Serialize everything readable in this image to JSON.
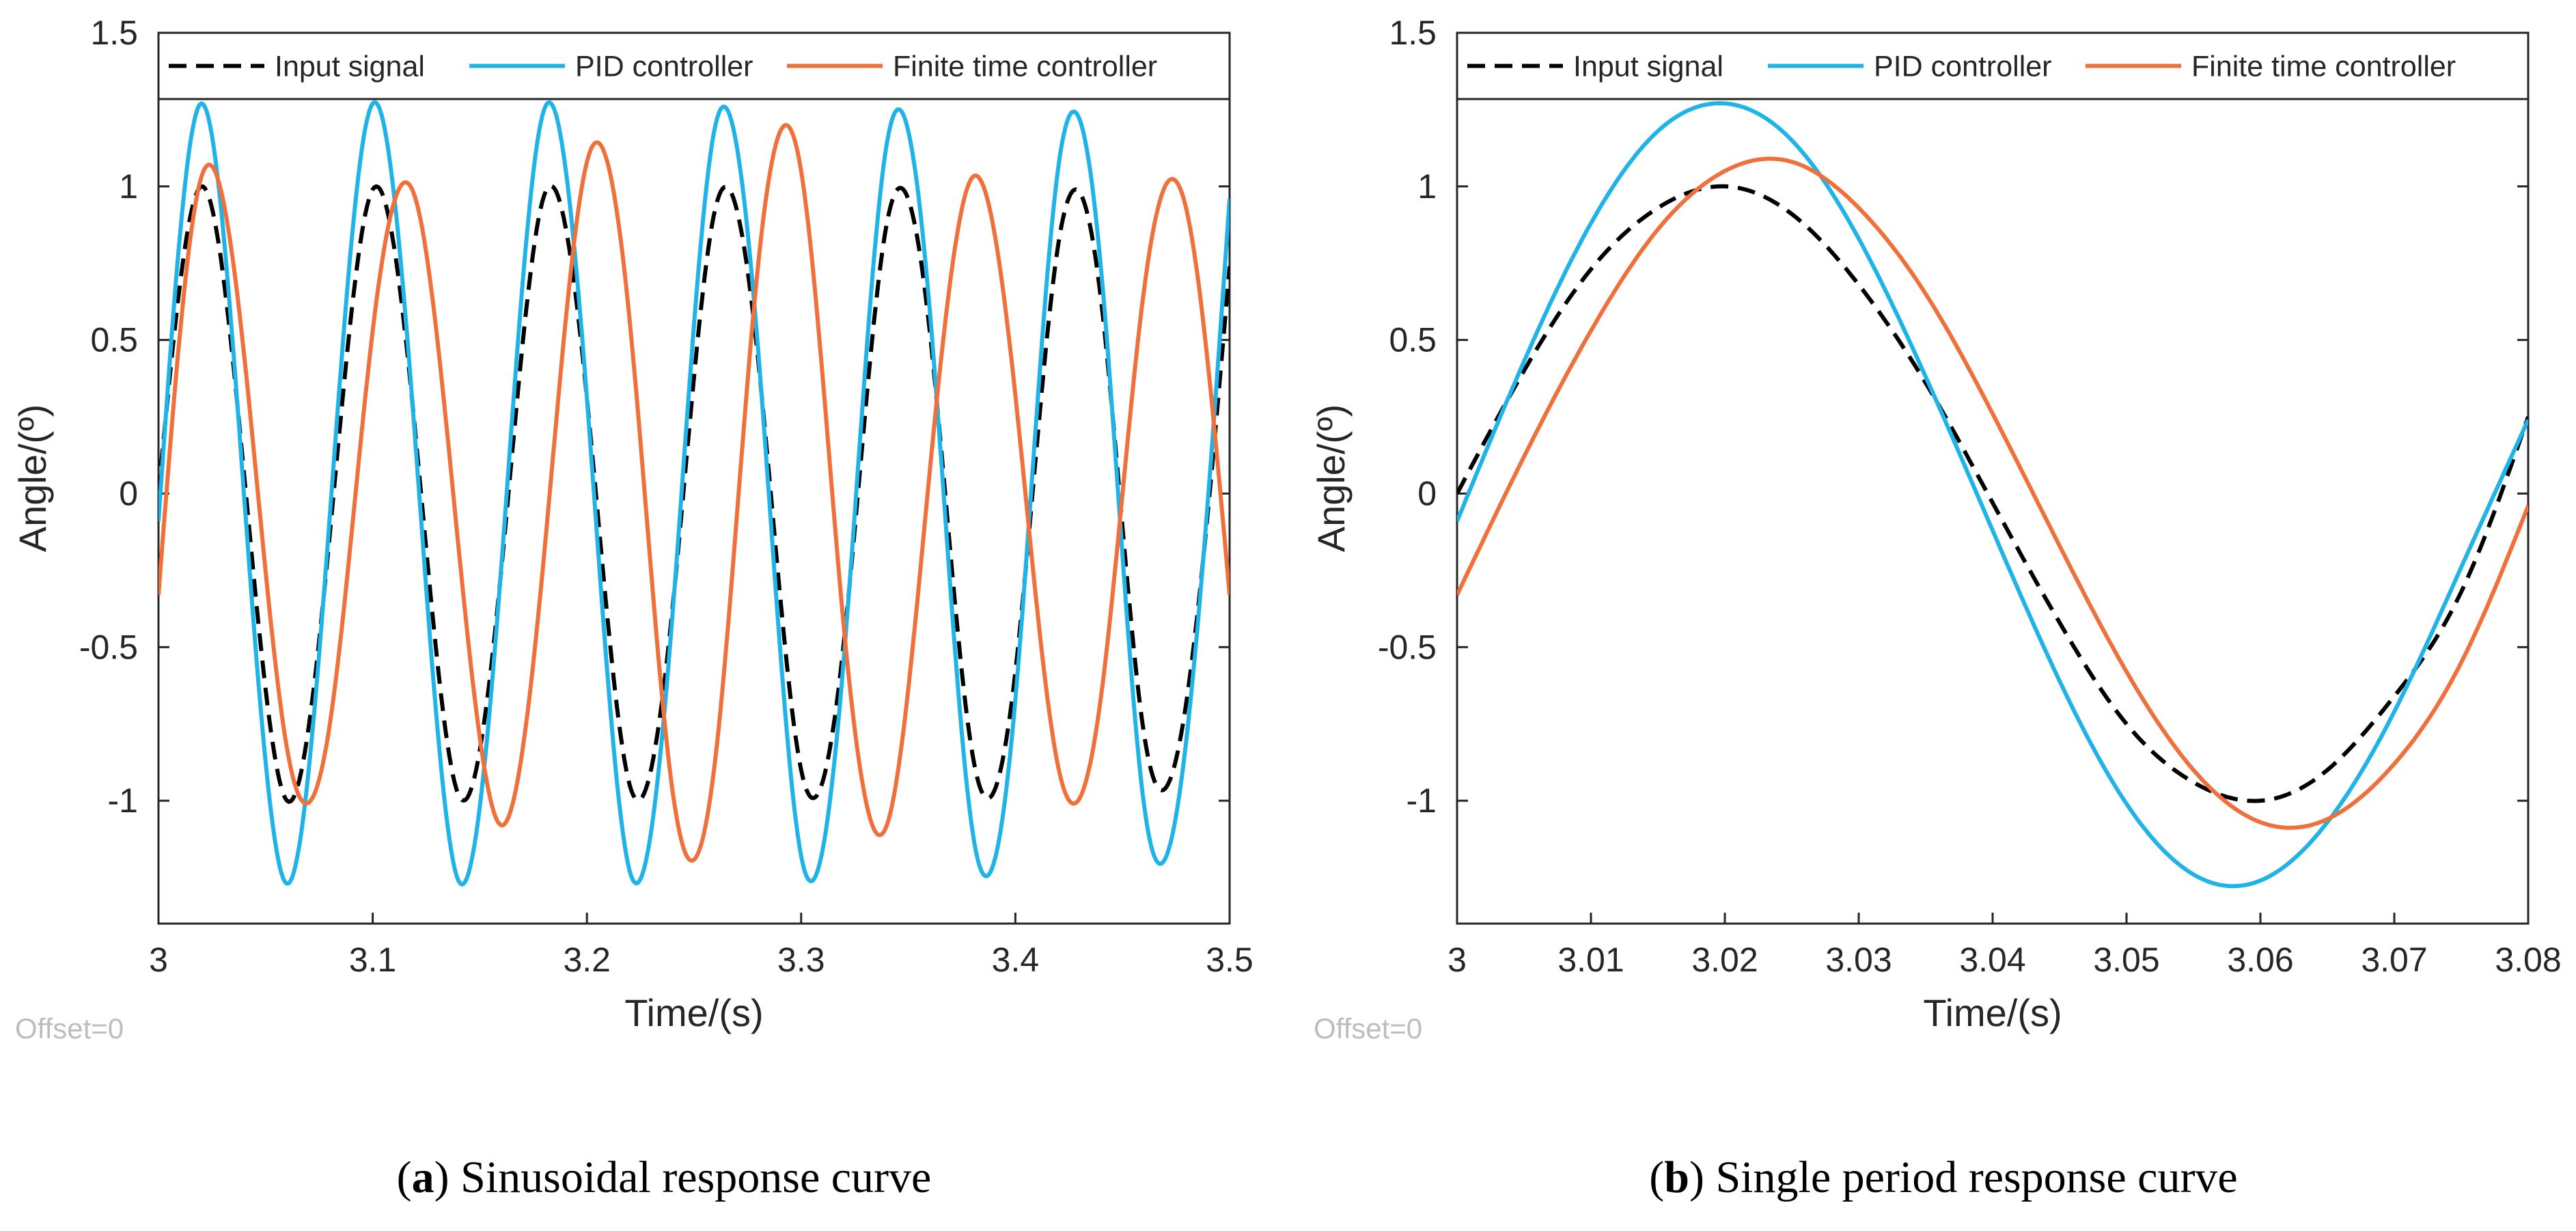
{
  "colors": {
    "input": "#000000",
    "pid": "#1fb3e8",
    "finite": "#f0703c"
  },
  "chart_data": [
    {
      "type": "line",
      "xlabel": "Time/(s)",
      "ylabel": "Angle/(º)",
      "offset_label": "Offset=0",
      "caption_letter": "a",
      "caption_open": "(",
      "caption_close": ")",
      "caption_text": " Sinusoidal response curve",
      "xlim": [
        3,
        3.5
      ],
      "ylim": [
        -1.4,
        1.5
      ],
      "xticks": [
        3,
        3.1,
        3.2,
        3.3,
        3.4,
        3.5
      ],
      "xtick_labels": [
        "3",
        "3.1",
        "3.2",
        "3.3",
        "3.4",
        "3.5"
      ],
      "yticks": [
        -1,
        -0.5,
        0,
        0.5,
        1,
        1.5
      ],
      "ytick_labels": [
        "-1",
        "-0.5",
        "0",
        "0.5",
        "1",
        "1.5"
      ],
      "legend_position": "top",
      "series": [
        {
          "name": "Input signal",
          "style": "dashed",
          "x": [
            3,
            3.02,
            3.04,
            3.06,
            3.08,
            3.1,
            3.12,
            3.14,
            3.16,
            3.18,
            3.2,
            3.22,
            3.24,
            3.26,
            3.28,
            3.3,
            3.32,
            3.34,
            3.36,
            3.38,
            3.4,
            3.42,
            3.44,
            3.46,
            3.48,
            3.5
          ],
          "y": [
            0,
            1,
            0.06,
            -1,
            -0.13,
            0.99,
            0.19,
            -0.98,
            -0.25,
            0.97,
            0.31,
            -0.95,
            -0.37,
            0.93,
            0.43,
            -0.9,
            -0.48,
            0.88,
            0.53,
            -0.85,
            -0.58,
            0.81,
            0.63,
            -0.78,
            -0.67,
            0.74
          ]
        },
        {
          "name": "PID controller",
          "style": "solid",
          "x": [
            3,
            3.02,
            3.04,
            3.06,
            3.08,
            3.1,
            3.12,
            3.14,
            3.16,
            3.18,
            3.2,
            3.22,
            3.24,
            3.26,
            3.28,
            3.3,
            3.32,
            3.34,
            3.36,
            3.38,
            3.4,
            3.42,
            3.44,
            3.46,
            3.48,
            3.5
          ],
          "y": [
            -0.09,
            1.27,
            -0.01,
            -1.27,
            -0.07,
            1.27,
            0.16,
            -1.26,
            -0.24,
            1.25,
            0.31,
            -1.23,
            -0.39,
            1.2,
            0.46,
            -1.18,
            -0.53,
            1.14,
            0.6,
            -1.1,
            -0.67,
            1.06,
            0.73,
            -1.01,
            -0.79,
            0.96
          ]
        },
        {
          "name": "Finite time controller",
          "style": "solid",
          "x": [
            3,
            3.02,
            3.04,
            3.06,
            3.08,
            3.1,
            3.12,
            3.14,
            3.16,
            3.18,
            3.2,
            3.22,
            3.24,
            3.26,
            3.28,
            3.3,
            3.32,
            3.34,
            3.36,
            3.38,
            3.4,
            3.42,
            3.44,
            3.46,
            3.48,
            3.5
          ],
          "y": [
            -0.33,
            1.03,
            0.45,
            -0.83,
            -0.75,
            0.53,
            0.96,
            -0.17,
            -1.08,
            -0.2,
            1.08,
            0.56,
            -0.97,
            -0.86,
            0.75,
            1.05,
            -0.44,
            -1.08,
            0.07,
            1.03,
            0.32,
            -0.89,
            -0.66,
            0.66,
            0.92,
            -0.33
          ]
        }
      ]
    },
    {
      "type": "line",
      "xlabel": "Time/(s)",
      "ylabel": "Angle/(º)",
      "offset_label": "Offset=0",
      "caption_letter": "b",
      "caption_open": "(",
      "caption_close": ")",
      "caption_text": " Single period response curve",
      "xlim": [
        3,
        3.08
      ],
      "ylim": [
        -1.4,
        1.5
      ],
      "xticks": [
        3,
        3.01,
        3.02,
        3.03,
        3.04,
        3.05,
        3.06,
        3.07,
        3.08
      ],
      "xtick_labels": [
        "3",
        "3.01",
        "3.02",
        "3.03",
        "3.04",
        "3.05",
        "3.06",
        "3.07",
        "3.08"
      ],
      "yticks": [
        -1,
        -0.5,
        0,
        0.5,
        1,
        1.5
      ],
      "ytick_labels": [
        "-1",
        "-0.5",
        "0",
        "0.5",
        "1",
        "1.5"
      ],
      "legend_position": "top",
      "series": [
        {
          "name": "Input signal",
          "style": "dashed",
          "x": [
            3,
            3.005,
            3.01,
            3.015,
            3.02,
            3.025,
            3.03,
            3.035,
            3.04,
            3.045,
            3.05,
            3.055,
            3.06,
            3.065,
            3.07,
            3.075,
            3.08
          ],
          "y": [
            0,
            0.4,
            0.73,
            0.93,
            1,
            0.91,
            0.68,
            0.36,
            -0.03,
            -0.42,
            -0.75,
            -0.94,
            -1,
            -0.9,
            -0.66,
            -0.32,
            0.25
          ]
        },
        {
          "name": "PID controller",
          "style": "solid",
          "x": [
            3,
            3.005,
            3.01,
            3.015,
            3.02,
            3.025,
            3.03,
            3.035,
            3.04,
            3.045,
            3.05,
            3.055,
            3.06,
            3.065,
            3.07,
            3.075,
            3.08
          ],
          "y": [
            -0.09,
            0.43,
            0.88,
            1.18,
            1.27,
            1.15,
            0.83,
            0.38,
            -0.12,
            -0.61,
            -1.01,
            -1.24,
            -1.26,
            -1.07,
            -0.71,
            -0.24,
            0.24
          ]
        },
        {
          "name": "Finite time controller",
          "style": "solid",
          "x": [
            3,
            3.005,
            3.01,
            3.015,
            3.02,
            3.025,
            3.03,
            3.035,
            3.04,
            3.045,
            3.05,
            3.055,
            3.06,
            3.065,
            3.07,
            3.075,
            3.08
          ],
          "y": [
            -0.33,
            0.12,
            0.53,
            0.86,
            1.05,
            1.08,
            0.93,
            0.65,
            0.26,
            -0.17,
            -0.58,
            -0.9,
            -1.07,
            -1.06,
            -0.88,
            -0.55,
            -0.04
          ]
        }
      ]
    }
  ]
}
